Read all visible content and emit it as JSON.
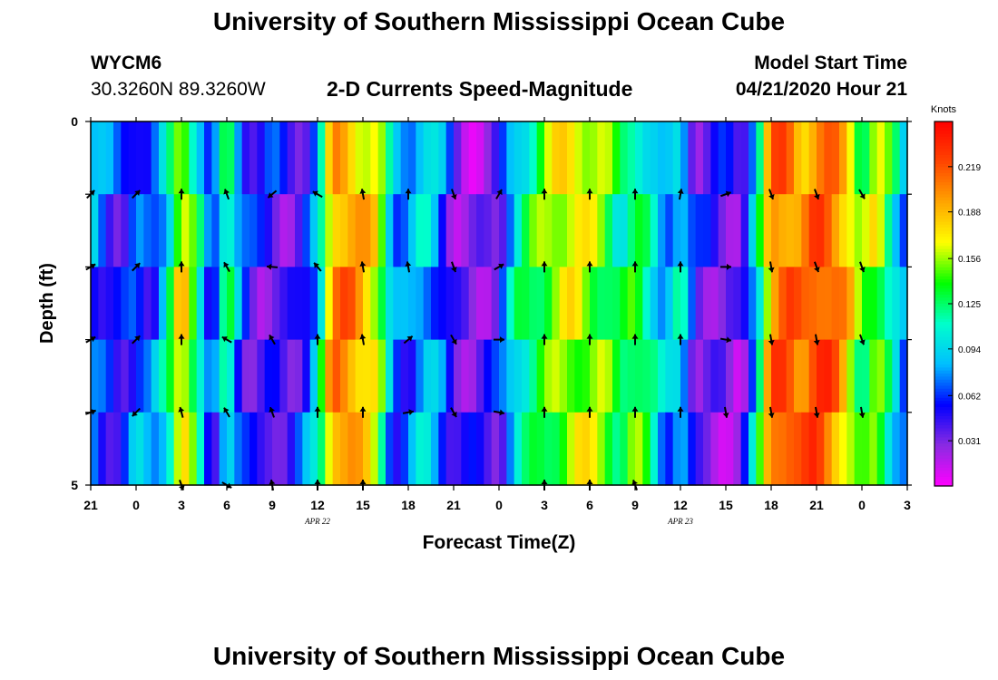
{
  "page": {
    "title_top": "University of Southern Mississippi Ocean Cube",
    "title_bottom": "University of Southern Mississippi Ocean Cube",
    "station_id": "WYCM6",
    "station_coords": "30.3260N 89.3260W",
    "plot_title": "2-D Currents Speed-Magnitude",
    "model_start_label": "Model Start Time",
    "model_start_value": "04/21/2020 Hour 21"
  },
  "colors": {
    "text": "#000000",
    "colormap": [
      "#ff00ff",
      "#8a2be2",
      "#0000ff",
      "#00bfff",
      "#00ffcc",
      "#00ff00",
      "#ffff00",
      "#ffa500",
      "#ff4500",
      "#ff0000"
    ]
  },
  "chart_data": {
    "type": "heatmap",
    "title": "2-D Currents Speed-Magnitude",
    "xlabel": "Forecast Time(Z)",
    "ylabel": "Depth (ft)",
    "x_ticks": [
      "21",
      "0",
      "3",
      "6",
      "9",
      "12",
      "15",
      "18",
      "21",
      "0",
      "3",
      "6",
      "9",
      "12",
      "15",
      "18",
      "21",
      "0",
      "3"
    ],
    "x_hours": [
      0,
      3,
      6,
      9,
      12,
      15,
      18,
      21,
      24,
      27,
      30,
      33,
      36,
      39,
      42,
      45,
      48,
      51,
      54
    ],
    "date_labels": [
      {
        "text": "APR  22",
        "hour": 15
      },
      {
        "text": "APR  23",
        "hour": 39
      }
    ],
    "y_ticks": [
      "0",
      "5"
    ],
    "y_range": [
      0,
      5
    ],
    "depth_levels": [
      0.5,
      1.5,
      2.5,
      3.5,
      4.5
    ],
    "colorbar": {
      "title": "Knots",
      "ticks": [
        "0.219",
        "0.188",
        "0.156",
        "0.125",
        "0.094",
        "0.062",
        "0.031"
      ],
      "tick_values": [
        0.219,
        0.188,
        0.156,
        0.125,
        0.094,
        0.062,
        0.031
      ],
      "range": [
        0.0,
        0.25
      ]
    },
    "time_profile_knots": [
      {
        "h": 0,
        "v": 0.08
      },
      {
        "h": 1,
        "v": 0.06
      },
      {
        "h": 2,
        "v": 0.05
      },
      {
        "h": 3,
        "v": 0.075
      },
      {
        "h": 4,
        "v": 0.06
      },
      {
        "h": 5,
        "v": 0.1
      },
      {
        "h": 6,
        "v": 0.18
      },
      {
        "h": 7,
        "v": 0.12
      },
      {
        "h": 8,
        "v": 0.04
      },
      {
        "h": 9,
        "v": 0.13
      },
      {
        "h": 10,
        "v": 0.06
      },
      {
        "h": 11,
        "v": 0.04
      },
      {
        "h": 12,
        "v": 0.05
      },
      {
        "h": 13,
        "v": 0.04
      },
      {
        "h": 14,
        "v": 0.05
      },
      {
        "h": 15,
        "v": 0.09
      },
      {
        "h": 16,
        "v": 0.2
      },
      {
        "h": 17,
        "v": 0.2
      },
      {
        "h": 18,
        "v": 0.18
      },
      {
        "h": 19,
        "v": 0.16
      },
      {
        "h": 20,
        "v": 0.07
      },
      {
        "h": 21,
        "v": 0.07
      },
      {
        "h": 22,
        "v": 0.1
      },
      {
        "h": 23,
        "v": 0.08
      },
      {
        "h": 24,
        "v": 0.04
      },
      {
        "h": 25,
        "v": 0.03
      },
      {
        "h": 26,
        "v": 0.03
      },
      {
        "h": 27,
        "v": 0.04
      },
      {
        "h": 28,
        "v": 0.1
      },
      {
        "h": 29,
        "v": 0.12
      },
      {
        "h": 30,
        "v": 0.14
      },
      {
        "h": 31,
        "v": 0.16
      },
      {
        "h": 32,
        "v": 0.17
      },
      {
        "h": 33,
        "v": 0.16
      },
      {
        "h": 34,
        "v": 0.15
      },
      {
        "h": 35,
        "v": 0.12
      },
      {
        "h": 36,
        "v": 0.14
      },
      {
        "h": 37,
        "v": 0.11
      },
      {
        "h": 38,
        "v": 0.07
      },
      {
        "h": 39,
        "v": 0.1
      },
      {
        "h": 40,
        "v": 0.035
      },
      {
        "h": 41,
        "v": 0.035
      },
      {
        "h": 42,
        "v": 0.035
      },
      {
        "h": 43,
        "v": 0.03
      },
      {
        "h": 44,
        "v": 0.1
      },
      {
        "h": 45,
        "v": 0.21
      },
      {
        "h": 46,
        "v": 0.22
      },
      {
        "h": 47,
        "v": 0.2
      },
      {
        "h": 48,
        "v": 0.22
      },
      {
        "h": 49,
        "v": 0.21
      },
      {
        "h": 50,
        "v": 0.18
      },
      {
        "h": 51,
        "v": 0.13
      },
      {
        "h": 52,
        "v": 0.16
      },
      {
        "h": 53,
        "v": 0.11
      },
      {
        "h": 54,
        "v": 0.07
      }
    ],
    "vectors": [
      {
        "hour": 0,
        "depth": 1,
        "dir_deg": 45
      },
      {
        "hour": 3,
        "depth": 1,
        "dir_deg": 45
      },
      {
        "hour": 6,
        "depth": 1,
        "dir_deg": 0
      },
      {
        "hour": 9,
        "depth": 1,
        "dir_deg": 340
      },
      {
        "hour": 12,
        "depth": 1,
        "dir_deg": 230
      },
      {
        "hour": 15,
        "depth": 1,
        "dir_deg": 300
      },
      {
        "hour": 18,
        "depth": 1,
        "dir_deg": 350
      },
      {
        "hour": 21,
        "depth": 1,
        "dir_deg": 0
      },
      {
        "hour": 24,
        "depth": 1,
        "dir_deg": 160
      },
      {
        "hour": 27,
        "depth": 1,
        "dir_deg": 30
      },
      {
        "hour": 30,
        "depth": 1,
        "dir_deg": 0
      },
      {
        "hour": 33,
        "depth": 1,
        "dir_deg": 0
      },
      {
        "hour": 36,
        "depth": 1,
        "dir_deg": 0
      },
      {
        "hour": 39,
        "depth": 1,
        "dir_deg": 10
      },
      {
        "hour": 42,
        "depth": 1,
        "dir_deg": 70
      },
      {
        "hour": 45,
        "depth": 1,
        "dir_deg": 160
      },
      {
        "hour": 48,
        "depth": 1,
        "dir_deg": 160
      },
      {
        "hour": 51,
        "depth": 1,
        "dir_deg": 150
      },
      {
        "hour": 0,
        "depth": 2,
        "dir_deg": 60
      },
      {
        "hour": 3,
        "depth": 2,
        "dir_deg": 45
      },
      {
        "hour": 6,
        "depth": 2,
        "dir_deg": 0
      },
      {
        "hour": 9,
        "depth": 2,
        "dir_deg": 330
      },
      {
        "hour": 12,
        "depth": 2,
        "dir_deg": 275
      },
      {
        "hour": 15,
        "depth": 2,
        "dir_deg": 320
      },
      {
        "hour": 18,
        "depth": 2,
        "dir_deg": 350
      },
      {
        "hour": 21,
        "depth": 2,
        "dir_deg": 350
      },
      {
        "hour": 24,
        "depth": 2,
        "dir_deg": 160
      },
      {
        "hour": 27,
        "depth": 2,
        "dir_deg": 60
      },
      {
        "hour": 30,
        "depth": 2,
        "dir_deg": 0
      },
      {
        "hour": 33,
        "depth": 2,
        "dir_deg": 0
      },
      {
        "hour": 36,
        "depth": 2,
        "dir_deg": 0
      },
      {
        "hour": 39,
        "depth": 2,
        "dir_deg": 0
      },
      {
        "hour": 42,
        "depth": 2,
        "dir_deg": 90
      },
      {
        "hour": 45,
        "depth": 2,
        "dir_deg": 170
      },
      {
        "hour": 48,
        "depth": 2,
        "dir_deg": 160
      },
      {
        "hour": 51,
        "depth": 2,
        "dir_deg": 160
      },
      {
        "hour": 0,
        "depth": 3,
        "dir_deg": 60
      },
      {
        "hour": 3,
        "depth": 3,
        "dir_deg": 45
      },
      {
        "hour": 6,
        "depth": 3,
        "dir_deg": 0
      },
      {
        "hour": 9,
        "depth": 3,
        "dir_deg": 300
      },
      {
        "hour": 12,
        "depth": 3,
        "dir_deg": 330
      },
      {
        "hour": 15,
        "depth": 3,
        "dir_deg": 0
      },
      {
        "hour": 18,
        "depth": 3,
        "dir_deg": 350
      },
      {
        "hour": 21,
        "depth": 3,
        "dir_deg": 50
      },
      {
        "hour": 24,
        "depth": 3,
        "dir_deg": 150
      },
      {
        "hour": 27,
        "depth": 3,
        "dir_deg": 90
      },
      {
        "hour": 30,
        "depth": 3,
        "dir_deg": 0
      },
      {
        "hour": 33,
        "depth": 3,
        "dir_deg": 0
      },
      {
        "hour": 36,
        "depth": 3,
        "dir_deg": 0
      },
      {
        "hour": 39,
        "depth": 3,
        "dir_deg": 0
      },
      {
        "hour": 42,
        "depth": 3,
        "dir_deg": 100
      },
      {
        "hour": 45,
        "depth": 3,
        "dir_deg": 170
      },
      {
        "hour": 48,
        "depth": 3,
        "dir_deg": 170
      },
      {
        "hour": 51,
        "depth": 3,
        "dir_deg": 160
      },
      {
        "hour": 0,
        "depth": 4,
        "dir_deg": 70
      },
      {
        "hour": 3,
        "depth": 4,
        "dir_deg": 225
      },
      {
        "hour": 6,
        "depth": 4,
        "dir_deg": 345
      },
      {
        "hour": 9,
        "depth": 4,
        "dir_deg": 330
      },
      {
        "hour": 12,
        "depth": 4,
        "dir_deg": 340
      },
      {
        "hour": 15,
        "depth": 4,
        "dir_deg": 0
      },
      {
        "hour": 18,
        "depth": 4,
        "dir_deg": 0
      },
      {
        "hour": 21,
        "depth": 4,
        "dir_deg": 80
      },
      {
        "hour": 24,
        "depth": 4,
        "dir_deg": 150
      },
      {
        "hour": 27,
        "depth": 4,
        "dir_deg": 100
      },
      {
        "hour": 30,
        "depth": 4,
        "dir_deg": 0
      },
      {
        "hour": 33,
        "depth": 4,
        "dir_deg": 0
      },
      {
        "hour": 36,
        "depth": 4,
        "dir_deg": 0
      },
      {
        "hour": 39,
        "depth": 4,
        "dir_deg": 0
      },
      {
        "hour": 42,
        "depth": 4,
        "dir_deg": 170
      },
      {
        "hour": 45,
        "depth": 4,
        "dir_deg": 170
      },
      {
        "hour": 48,
        "depth": 4,
        "dir_deg": 170
      },
      {
        "hour": 51,
        "depth": 4,
        "dir_deg": 170
      },
      {
        "hour": 6,
        "depth": 5,
        "dir_deg": 160
      },
      {
        "hour": 9,
        "depth": 5,
        "dir_deg": 120
      },
      {
        "hour": 12,
        "depth": 5,
        "dir_deg": 350
      },
      {
        "hour": 15,
        "depth": 5,
        "dir_deg": 0
      },
      {
        "hour": 18,
        "depth": 5,
        "dir_deg": 0
      },
      {
        "hour": 30,
        "depth": 5,
        "dir_deg": 0
      },
      {
        "hour": 33,
        "depth": 5,
        "dir_deg": 0
      },
      {
        "hour": 36,
        "depth": 5,
        "dir_deg": 340
      }
    ]
  }
}
